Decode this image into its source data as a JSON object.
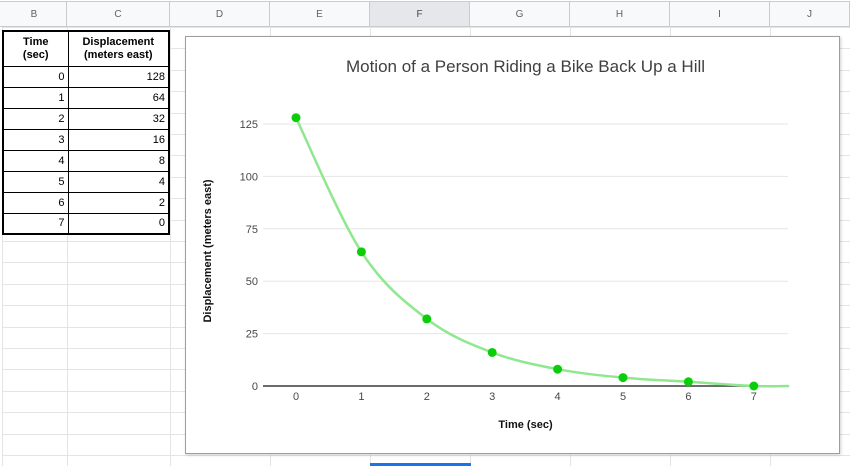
{
  "sheet": {
    "column_headers": [
      "B",
      "C",
      "D",
      "E",
      "F",
      "G",
      "H",
      "I",
      "J"
    ],
    "selected_column": "F",
    "selection_color": "#1a73e8"
  },
  "table": {
    "col_headers": [
      "Time\n(sec)",
      "Displacement\n(meters east)"
    ],
    "rows": [
      [
        "0",
        "128"
      ],
      [
        "1",
        "64"
      ],
      [
        "2",
        "32"
      ],
      [
        "3",
        "16"
      ],
      [
        "4",
        "8"
      ],
      [
        "5",
        "4"
      ],
      [
        "6",
        "2"
      ],
      [
        "7",
        "0"
      ]
    ]
  },
  "chart_data": {
    "type": "line",
    "title": "Motion of a Person Riding a Bike Back Up a Hill",
    "xlabel": "Time (sec)",
    "ylabel": "Displacement (meters east)",
    "x": [
      0,
      1,
      2,
      3,
      4,
      5,
      6,
      7
    ],
    "series": [
      {
        "name": "Displacement (meters east)",
        "values": [
          128,
          64,
          32,
          16,
          8,
          4,
          2,
          0
        ]
      }
    ],
    "xticks": [
      "0",
      "1",
      "2",
      "3",
      "4",
      "5",
      "6",
      "7"
    ],
    "yticks": [
      0,
      25,
      50,
      75,
      100,
      125
    ],
    "ylim": [
      0,
      135
    ],
    "grid": true,
    "legend_position": "none",
    "smooth": true,
    "line_color": "#8fe88f",
    "point_color": "#0bce0b",
    "axis_color": "#3c3c3c",
    "gridline_color": "#e6e6e6"
  }
}
